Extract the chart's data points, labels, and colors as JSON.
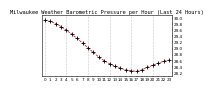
{
  "title": "Milwaukee Weather Barometric Pressure per Hour (Last 24 Hours)",
  "hours": [
    0,
    1,
    2,
    3,
    4,
    5,
    6,
    7,
    8,
    9,
    10,
    11,
    12,
    13,
    14,
    15,
    16,
    17,
    18,
    19,
    20,
    21,
    22,
    23
  ],
  "pressure": [
    29.93,
    29.89,
    29.82,
    29.72,
    29.6,
    29.47,
    29.33,
    29.18,
    29.02,
    28.87,
    28.72,
    28.6,
    28.5,
    28.42,
    28.35,
    28.3,
    28.27,
    28.25,
    28.3,
    28.38,
    28.45,
    28.52,
    28.58,
    28.62
  ],
  "line_color": "#cc0000",
  "line_style": "--",
  "marker": "+",
  "marker_color": "#000000",
  "marker_size": 3,
  "marker_linewidth": 0.6,
  "line_width": 0.5,
  "ylim": [
    28.1,
    30.1
  ],
  "yticks": [
    28.2,
    28.4,
    28.6,
    28.8,
    29.0,
    29.2,
    29.4,
    29.6,
    29.8,
    30.0
  ],
  "grid_color": "#999999",
  "grid_style": ":",
  "background_color": "#ffffff",
  "title_fontsize": 3.8,
  "tick_fontsize": 3.0,
  "vgrid_positions": [
    0,
    4,
    8,
    12,
    16,
    20
  ]
}
